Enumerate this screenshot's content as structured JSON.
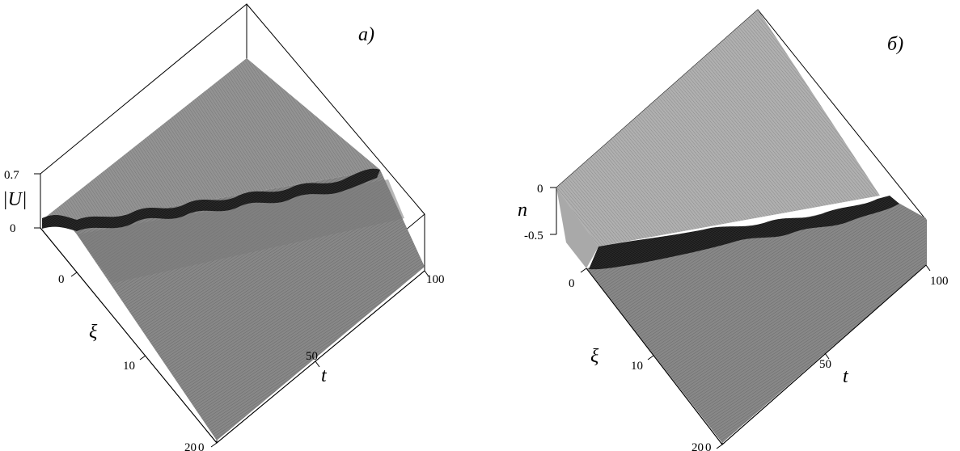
{
  "panels": [
    {
      "label": "a)",
      "z_axis": {
        "label": "|U|",
        "ticks": [
          "0.7",
          "0"
        ]
      },
      "xi_axis": {
        "label": "ξ",
        "ticks": [
          "0",
          "10",
          "20"
        ]
      },
      "t_axis": {
        "label": "t",
        "ticks": [
          "0",
          "50",
          "100"
        ]
      }
    },
    {
      "label": "б)",
      "z_axis": {
        "label": "n",
        "ticks": [
          "0",
          "-0.5"
        ]
      },
      "xi_axis": {
        "label": "ξ",
        "ticks": [
          "0",
          "10",
          "20"
        ]
      },
      "t_axis": {
        "label": "t",
        "ticks": [
          "0",
          "50",
          "100"
        ]
      }
    }
  ],
  "colors": {
    "surface": "#8f8f8f",
    "surface_dark": "#6e6e6e",
    "ridge": "#1a1a1a",
    "frame": "#000000"
  }
}
